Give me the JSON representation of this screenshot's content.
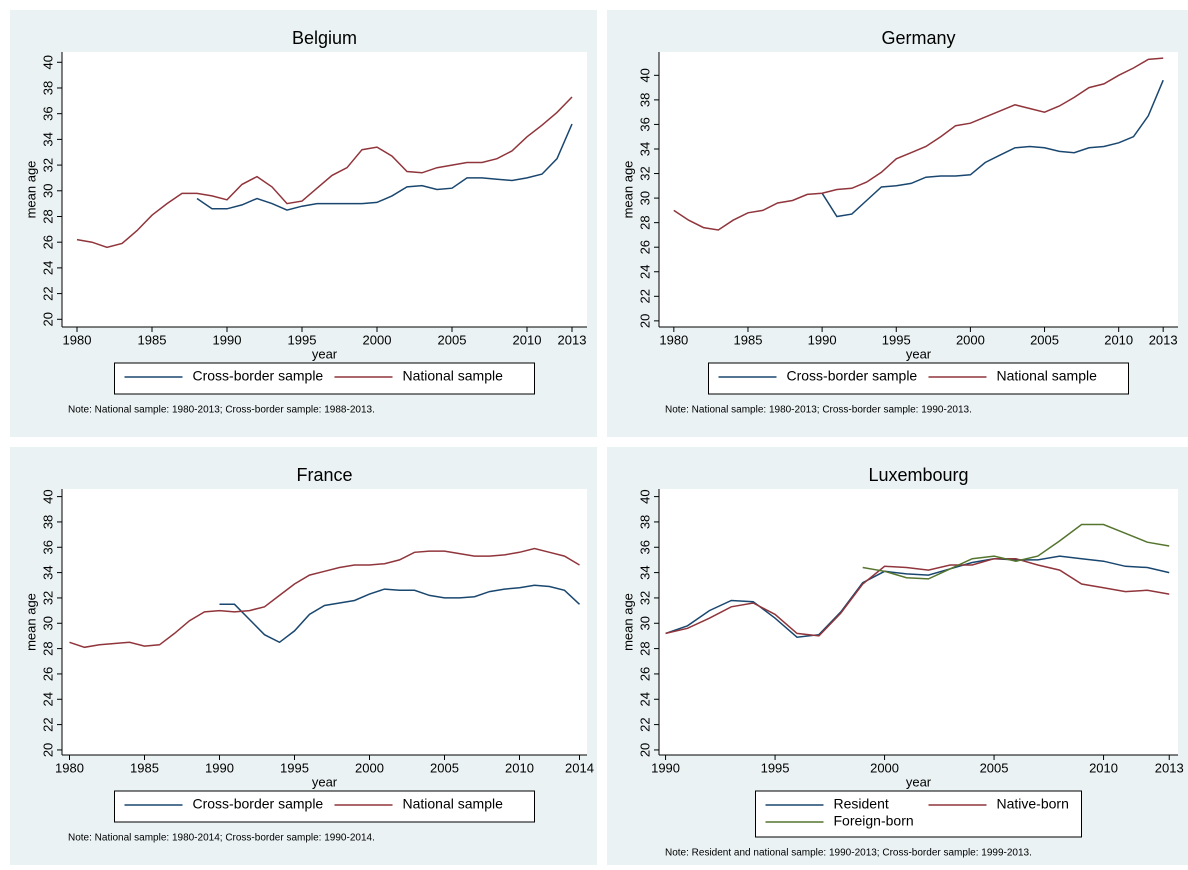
{
  "chart_data": [
    {
      "type": "line",
      "title": "Belgium",
      "x_label": "year",
      "y_label": "mean age",
      "x": [
        1980,
        1981,
        1982,
        1983,
        1984,
        1985,
        1986,
        1987,
        1988,
        1989,
        1990,
        1991,
        1992,
        1993,
        1994,
        1995,
        1996,
        1997,
        1998,
        1999,
        2000,
        2001,
        2002,
        2003,
        2004,
        2005,
        2006,
        2007,
        2008,
        2009,
        2010,
        2011,
        2012,
        2013
      ],
      "series": [
        {
          "name": "Cross-border sample",
          "color": "#1a476f",
          "values": [
            null,
            null,
            null,
            null,
            null,
            null,
            null,
            null,
            29.4,
            28.6,
            28.6,
            28.9,
            29.4,
            29.0,
            28.5,
            28.8,
            29.0,
            29.0,
            29.0,
            29.0,
            29.1,
            29.6,
            30.3,
            30.4,
            30.1,
            30.2,
            31.0,
            31.0,
            30.9,
            30.8,
            31.0,
            31.3,
            32.5,
            35.2
          ]
        },
        {
          "name": "National sample",
          "color": "#90353b",
          "values": [
            26.2,
            26.0,
            25.6,
            25.9,
            26.9,
            28.1,
            29.0,
            29.8,
            29.8,
            29.6,
            29.3,
            30.5,
            31.1,
            30.3,
            29.0,
            29.2,
            30.2,
            31.2,
            31.8,
            33.2,
            33.4,
            32.7,
            31.5,
            31.4,
            31.8,
            32.0,
            32.2,
            32.2,
            32.5,
            33.1,
            34.2,
            35.1,
            36.1,
            37.3
          ]
        }
      ],
      "xlim": [
        1979,
        2014
      ],
      "ylim": [
        19.4,
        40.8
      ],
      "xticks": [
        1980,
        1985,
        1990,
        1995,
        2000,
        2005,
        2010,
        2013
      ],
      "yticks": [
        20,
        22,
        24,
        26,
        28,
        30,
        32,
        34,
        36,
        38,
        40
      ],
      "note": "Note: National sample: 1980-2013; Cross-border sample: 1988-2013."
    },
    {
      "type": "line",
      "title": "Germany",
      "x_label": "year",
      "y_label": "mean age",
      "x": [
        1980,
        1981,
        1982,
        1983,
        1984,
        1985,
        1986,
        1987,
        1988,
        1989,
        1990,
        1991,
        1992,
        1993,
        1994,
        1995,
        1996,
        1997,
        1998,
        1999,
        2000,
        2001,
        2002,
        2003,
        2004,
        2005,
        2006,
        2007,
        2008,
        2009,
        2010,
        2011,
        2012,
        2013
      ],
      "series": [
        {
          "name": "Cross-border sample",
          "color": "#1a476f",
          "values": [
            null,
            null,
            null,
            null,
            null,
            null,
            null,
            null,
            null,
            null,
            30.4,
            28.5,
            28.7,
            29.8,
            30.9,
            31.0,
            31.2,
            31.7,
            31.8,
            31.8,
            31.9,
            32.9,
            33.5,
            34.1,
            34.2,
            34.1,
            33.8,
            33.7,
            34.1,
            34.2,
            34.5,
            35.0,
            36.7,
            39.6
          ]
        },
        {
          "name": "National sample",
          "color": "#90353b",
          "values": [
            29.0,
            28.2,
            27.6,
            27.4,
            28.2,
            28.8,
            29.0,
            29.6,
            29.8,
            30.3,
            30.4,
            30.7,
            30.8,
            31.3,
            32.1,
            33.2,
            33.7,
            34.2,
            35.0,
            35.9,
            36.1,
            36.6,
            37.1,
            37.6,
            37.3,
            37.0,
            37.5,
            38.2,
            39.0,
            39.3,
            40.0,
            40.6,
            41.3,
            41.4
          ]
        }
      ],
      "xlim": [
        1979,
        2014
      ],
      "ylim": [
        19.5,
        41.9
      ],
      "xticks": [
        1980,
        1985,
        1990,
        1995,
        2000,
        2005,
        2010,
        2013
      ],
      "yticks": [
        20,
        22,
        24,
        26,
        28,
        30,
        32,
        34,
        36,
        38,
        40
      ],
      "note": "Note: National sample: 1980-2013; Cross-border sample: 1990-2013."
    },
    {
      "type": "line",
      "title": "France",
      "x_label": "year",
      "y_label": "mean age",
      "x": [
        1980,
        1981,
        1982,
        1983,
        1984,
        1985,
        1986,
        1987,
        1988,
        1989,
        1990,
        1991,
        1992,
        1993,
        1994,
        1995,
        1996,
        1997,
        1998,
        1999,
        2000,
        2001,
        2002,
        2003,
        2004,
        2005,
        2006,
        2007,
        2008,
        2009,
        2010,
        2011,
        2012,
        2013,
        2014
      ],
      "series": [
        {
          "name": "Cross-border sample",
          "color": "#1a476f",
          "values": [
            null,
            null,
            null,
            null,
            null,
            null,
            null,
            null,
            null,
            null,
            31.5,
            31.5,
            30.3,
            29.1,
            28.5,
            29.4,
            30.7,
            31.4,
            31.6,
            31.8,
            32.3,
            32.7,
            32.6,
            32.6,
            32.2,
            32.0,
            32.0,
            32.1,
            32.5,
            32.7,
            32.8,
            33.0,
            32.9,
            32.6,
            31.5
          ]
        },
        {
          "name": "National sample",
          "color": "#90353b",
          "values": [
            28.5,
            28.1,
            28.3,
            28.4,
            28.5,
            28.2,
            28.3,
            29.2,
            30.2,
            30.9,
            31.0,
            30.9,
            31.0,
            31.3,
            32.2,
            33.1,
            33.8,
            34.1,
            34.4,
            34.6,
            34.6,
            34.7,
            35.0,
            35.6,
            35.7,
            35.7,
            35.5,
            35.3,
            35.3,
            35.4,
            35.6,
            35.9,
            35.6,
            35.3,
            34.6
          ]
        }
      ],
      "xlim": [
        1979.5,
        2014.5
      ],
      "ylim": [
        19.6,
        40.6
      ],
      "xticks": [
        1980,
        1985,
        1990,
        1995,
        2000,
        2005,
        2010,
        2014
      ],
      "yticks": [
        20,
        22,
        24,
        26,
        28,
        30,
        32,
        34,
        36,
        38,
        40
      ],
      "note": "Note: National sample: 1980-2014; Cross-border sample: 1990-2014."
    },
    {
      "type": "line",
      "title": "Luxembourg",
      "x_label": "year",
      "y_label": "mean age",
      "x": [
        1990,
        1991,
        1992,
        1993,
        1994,
        1995,
        1996,
        1997,
        1998,
        1999,
        2000,
        2001,
        2002,
        2003,
        2004,
        2005,
        2006,
        2007,
        2008,
        2009,
        2010,
        2011,
        2012,
        2013
      ],
      "series": [
        {
          "name": "Resident",
          "color": "#1a476f",
          "values": [
            29.2,
            29.8,
            31.0,
            31.8,
            31.7,
            30.4,
            28.9,
            29.1,
            30.9,
            33.2,
            34.1,
            33.9,
            33.8,
            34.3,
            34.8,
            35.1,
            35.0,
            35.0,
            35.3,
            35.1,
            34.9,
            34.5,
            34.4,
            34.0
          ]
        },
        {
          "name": "Native-born",
          "color": "#90353b",
          "values": [
            29.2,
            29.6,
            30.4,
            31.3,
            31.6,
            30.7,
            29.2,
            29.0,
            30.8,
            33.1,
            34.5,
            34.4,
            34.2,
            34.6,
            34.6,
            35.1,
            35.1,
            34.6,
            34.2,
            33.1,
            32.8,
            32.5,
            32.6,
            32.3
          ]
        },
        {
          "name": "Foreign-born",
          "color": "#55752f",
          "values": [
            null,
            null,
            null,
            null,
            null,
            null,
            null,
            null,
            null,
            34.4,
            34.1,
            33.6,
            33.5,
            34.3,
            35.1,
            35.3,
            34.9,
            35.3,
            36.5,
            37.8,
            37.8,
            37.1,
            36.4,
            36.1
          ]
        }
      ],
      "xlim": [
        1989.7,
        2013.4
      ],
      "ylim": [
        19.6,
        40.6
      ],
      "xticks": [
        1990,
        1995,
        2000,
        2005,
        2010,
        2013
      ],
      "yticks": [
        20,
        22,
        24,
        26,
        28,
        30,
        32,
        34,
        36,
        38,
        40
      ],
      "note": "Note: Resident and national sample: 1990-2013; Cross-border sample: 1999-2013."
    }
  ]
}
